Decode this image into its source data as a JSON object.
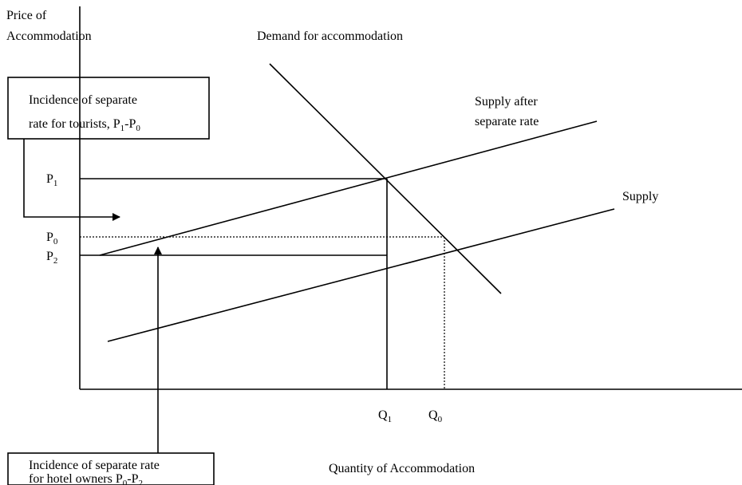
{
  "y_axis_label": [
    "Price of",
    "Accommodation"
  ],
  "x_axis_label": "Quantity of Accommodation",
  "curves": {
    "demand": "Demand for accommodation",
    "supply_after": [
      "Supply after",
      "separate rate"
    ],
    "supply": "Supply"
  },
  "price_levels": [
    [
      {
        "text": "P"
      },
      {
        "text": "1",
        "sub": true
      }
    ],
    [
      {
        "text": "P"
      },
      {
        "text": "0",
        "sub": true
      }
    ],
    [
      {
        "text": "P"
      },
      {
        "text": "2",
        "sub": true
      }
    ]
  ],
  "quantities": [
    [
      {
        "text": "Q"
      },
      {
        "text": "1",
        "sub": true
      }
    ],
    [
      {
        "text": "Q"
      },
      {
        "text": "0",
        "sub": true
      }
    ]
  ],
  "boxes": [
    {
      "lines": [
        [
          {
            "text": "Incidence of separate"
          }
        ],
        [
          {
            "text": "rate for tourists, P"
          },
          {
            "text": "1",
            "sub": true
          },
          {
            "text": "-P"
          },
          {
            "text": "0",
            "sub": true
          }
        ]
      ]
    },
    {
      "lines": [
        [
          {
            "text": "Incidence of separate rate"
          }
        ],
        [
          {
            "text": "for hotel owners P"
          },
          {
            "text": "0",
            "sub": true
          },
          {
            "text": "-P"
          },
          {
            "text": "2",
            "sub": true
          }
        ]
      ]
    }
  ]
}
